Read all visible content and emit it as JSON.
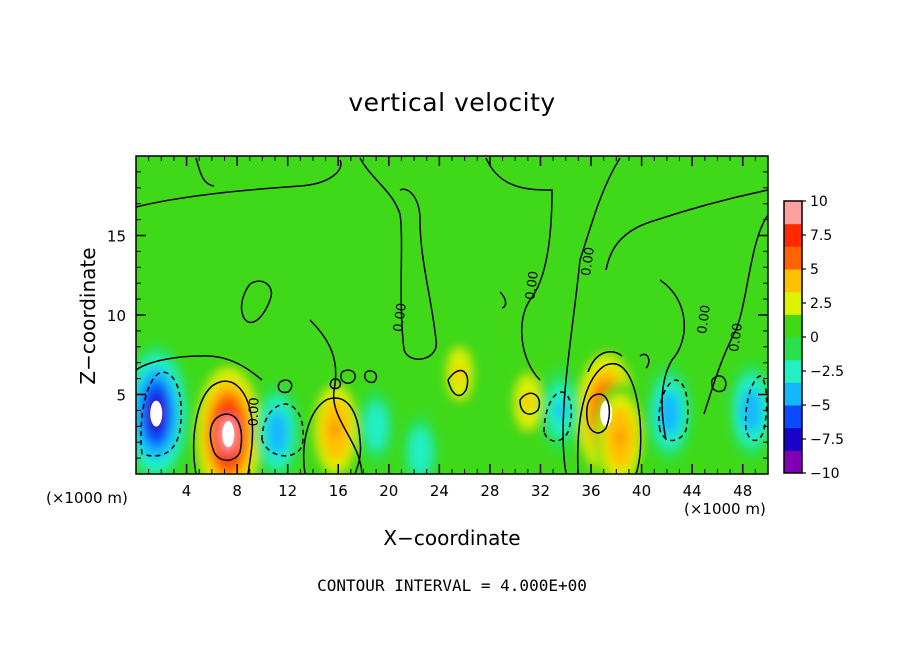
{
  "chart_data": {
    "type": "heatmap",
    "title": "vertical velocity",
    "xlabel": "X−coordinate",
    "ylabel": "Z−coordinate",
    "x_unit_left": "(×1000 m)",
    "x_unit_right": "(×1000 m)",
    "note": "CONTOUR INTERVAL = 4.000E+00",
    "xlim": [
      0,
      50
    ],
    "ylim": [
      0,
      20
    ],
    "x_ticks": [
      4,
      8,
      12,
      16,
      20,
      24,
      28,
      32,
      36,
      40,
      44,
      48
    ],
    "x_tick_labels": [
      "4",
      "8",
      "12",
      "16",
      "20",
      "24",
      "28",
      "32",
      "36",
      "40",
      "44",
      "48"
    ],
    "y_ticks": [
      5,
      10,
      15
    ],
    "y_tick_labels": [
      "5",
      "10",
      "15"
    ],
    "colorbar": {
      "range": [
        -10,
        10
      ],
      "ticks": [
        10,
        7.5,
        5,
        2.5,
        0,
        -2.5,
        -5,
        -7.5,
        -10
      ],
      "tick_labels": [
        "10",
        "7.5",
        "5",
        "2.5",
        "0",
        "−2.5",
        "−5",
        "−7.5",
        "−10"
      ],
      "colors": [
        "#7f00b2",
        "#1a00c8",
        "#0a4bff",
        "#13b7ff",
        "#22f0c4",
        "#29e04a",
        "#42d814",
        "#ddf200",
        "#ffc000",
        "#ff6400",
        "#ff2a00",
        "#ffa0a0"
      ]
    },
    "contour_label": "0.00",
    "features": [
      {
        "kind": "updraft",
        "x": 7.3,
        "z": 2.5,
        "w": 10
      },
      {
        "kind": "updraft",
        "x": 37.2,
        "z": 3.8,
        "w": 9
      },
      {
        "kind": "updraft",
        "x": 38.3,
        "z": 2.3,
        "w": 6
      },
      {
        "kind": "updraft",
        "x": 15.8,
        "z": 2.8,
        "w": 6
      },
      {
        "kind": "updraft",
        "x": 25.6,
        "z": 6.3,
        "w": 3.5
      },
      {
        "kind": "updraft",
        "x": 31.0,
        "z": 4.5,
        "w": 4
      },
      {
        "kind": "updraft",
        "x": 29.3,
        "z": 9.5,
        "w": 1.5
      },
      {
        "kind": "downdraft",
        "x": 1.6,
        "z": 3.8,
        "w": -9
      },
      {
        "kind": "downdraft",
        "x": 11.2,
        "z": 2.6,
        "w": -5
      },
      {
        "kind": "downdraft",
        "x": 33.6,
        "z": 4.0,
        "w": -4
      },
      {
        "kind": "downdraft",
        "x": 42.2,
        "z": 3.8,
        "w": -5
      },
      {
        "kind": "downdraft",
        "x": 48.7,
        "z": 4.0,
        "w": -5
      },
      {
        "kind": "downdraft",
        "x": 19.0,
        "z": 3.0,
        "w": -3
      },
      {
        "kind": "downdraft",
        "x": 22.5,
        "z": 1.4,
        "w": -3
      }
    ]
  }
}
